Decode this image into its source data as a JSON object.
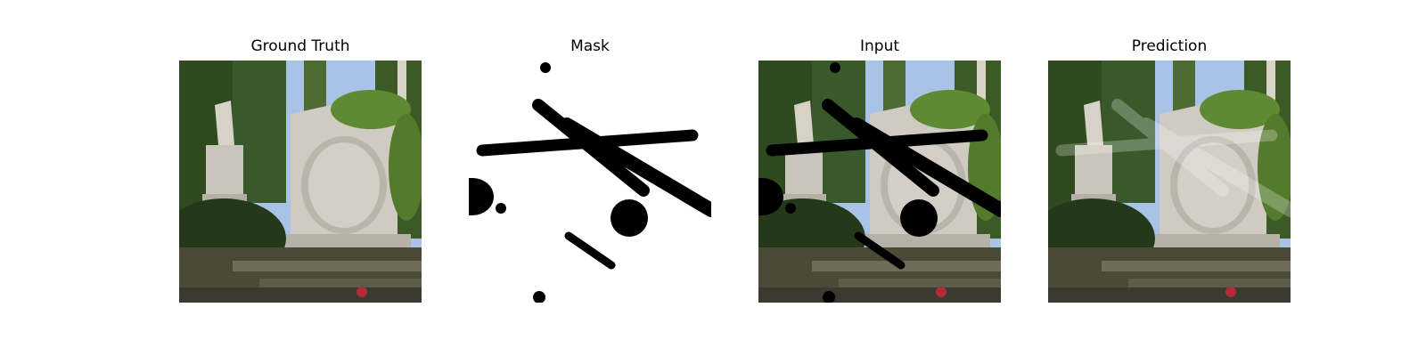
{
  "panels": [
    {
      "title": "Ground Truth"
    },
    {
      "title": "Mask"
    },
    {
      "title": "Input"
    },
    {
      "title": "Prediction"
    }
  ],
  "colors": {
    "sky": "#a9c3e6",
    "foliage": "#2f4a1e",
    "stone": "#c9c5bc",
    "shadow": "#3a3a30",
    "mask": "#000000"
  }
}
